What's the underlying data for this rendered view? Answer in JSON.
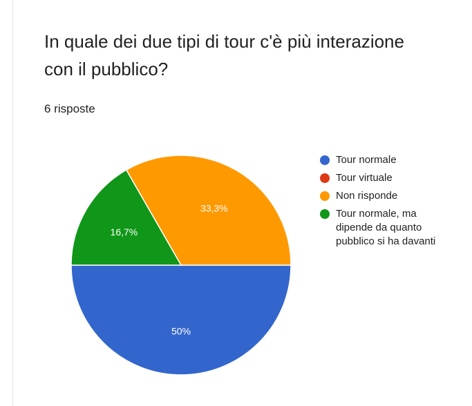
{
  "form": {
    "question_title": "In quale dei due tipi di tour c'è più interazione con il pubblico?",
    "response_count": "6 risposte"
  },
  "chart_data": {
    "type": "pie",
    "title": "In quale dei due tipi di tour c'è più interazione con il pubblico?",
    "subtitle": "6 risposte",
    "slices": [
      {
        "label": "Tour normale",
        "value": 50,
        "display": "50%",
        "color": "#3366cc"
      },
      {
        "label": "Tour virtuale",
        "value": 0,
        "display": "",
        "color": "#dc3912"
      },
      {
        "label": "Non risponde",
        "value": 33.3,
        "display": "33,3%",
        "color": "#ff9900"
      },
      {
        "label": "Tour normale, ma dipende da quanto pubblico si ha davanti",
        "value": 16.7,
        "display": "16,7%",
        "color": "#109618"
      }
    ],
    "legend_position": "right"
  }
}
